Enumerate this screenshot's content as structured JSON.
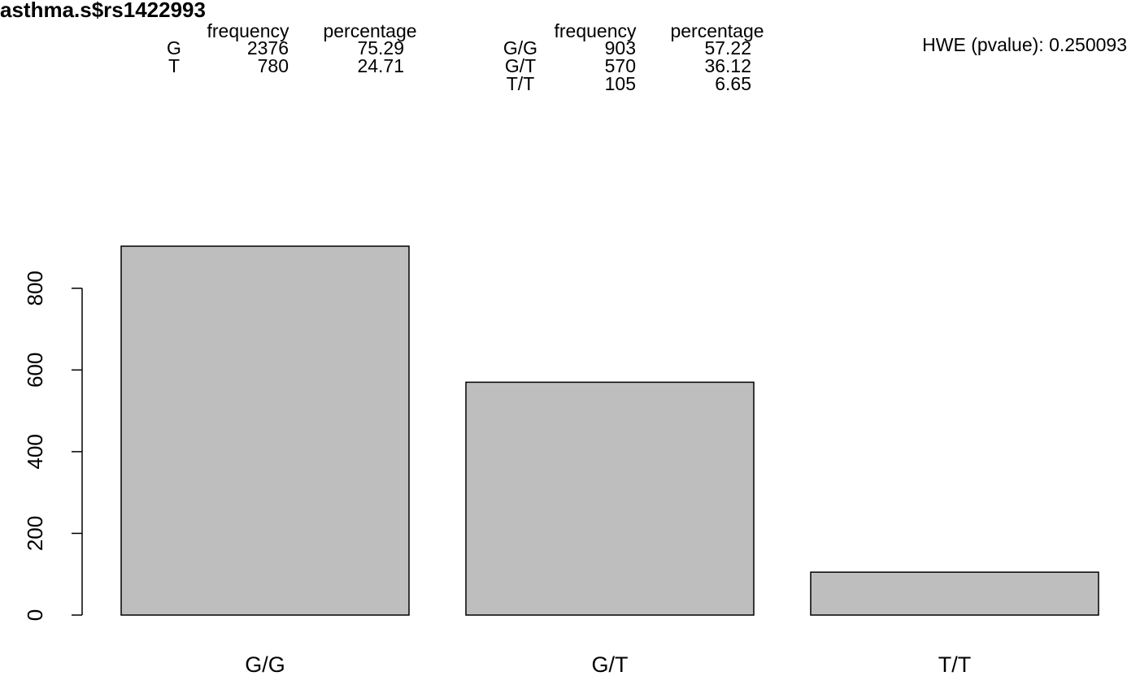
{
  "chart_data": {
    "type": "bar",
    "title": "asthma.s$rs1422993",
    "categories": [
      "G/G",
      "G/T",
      "T/T"
    ],
    "values": [
      903,
      570,
      105
    ],
    "color": "#bebebe",
    "ylim": [
      0,
      903
    ],
    "yticks": [
      0,
      200,
      400,
      600,
      800
    ],
    "allele_table": {
      "columns": [
        "frequency",
        "percentage"
      ],
      "rows": [
        {
          "label": "G",
          "values": [
            2376,
            75.29
          ]
        },
        {
          "label": "T",
          "values": [
            780,
            24.71
          ]
        }
      ]
    },
    "genotype_table": {
      "columns": [
        "frequency",
        "percentage"
      ],
      "rows": [
        {
          "label": "G/G",
          "values": [
            903,
            57.22
          ]
        },
        {
          "label": "G/T",
          "values": [
            570,
            36.12
          ]
        },
        {
          "label": "T/T",
          "values": [
            105,
            6.65
          ]
        }
      ]
    },
    "annotation": "HWE (pvalue): 0.250093"
  }
}
